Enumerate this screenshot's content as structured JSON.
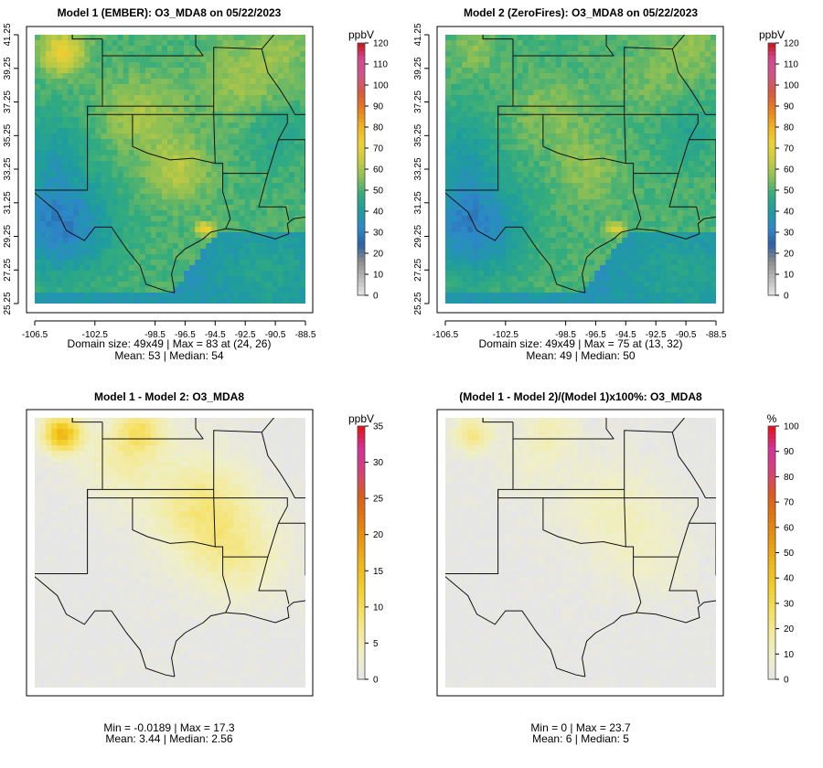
{
  "palette_main": [
    "#e6e6e6",
    "#b9b9b9",
    "#8d8d8d",
    "#2a60a6",
    "#2d88c8",
    "#1e9c9f",
    "#33ac7d",
    "#8cbf55",
    "#c7cc3f",
    "#eed334",
    "#f0b31e",
    "#e8801b",
    "#d85a3b",
    "#cf5582",
    "#d24a94",
    "#c81414"
  ],
  "palette_diff": [
    "#e6e6e6",
    "#efefc8",
    "#f4ea9a",
    "#f5df5e",
    "#f3ce28",
    "#efb716",
    "#e9980f",
    "#e27a0e",
    "#d95c1c",
    "#d3427a",
    "#d43298",
    "#e81010"
  ],
  "panels": [
    {
      "id": "p1",
      "title": "Model 1 (EMBER): O3_MDA8 on 05/22/2023",
      "x_ticks": [
        "-106.5",
        "-102.5",
        "-98.5",
        "-96.5",
        "-94.5",
        "-92.5",
        "-90.5",
        "-88.5"
      ],
      "y_ticks": [
        "25.25",
        "27.25",
        "29.25",
        "31.25",
        "33.25",
        "35.25",
        "37.25",
        "39.25",
        "41.25"
      ],
      "legend_unit": "ppbV",
      "legend_ticks": [
        "0",
        "10",
        "20",
        "30",
        "40",
        "50",
        "60",
        "70",
        "80",
        "90",
        "100",
        "110",
        "120"
      ],
      "stats_line1": "Domain size: 49x49 | Max = 83 at (24, 26)",
      "stats_line2": "Mean: 53 |  Median: 54"
    },
    {
      "id": "p2",
      "title": "Model 2 (ZeroFires): O3_MDA8 on 05/22/2023",
      "x_ticks": [
        "-106.5",
        "-102.5",
        "-98.5",
        "-96.5",
        "-94.5",
        "-92.5",
        "-90.5",
        "-88.5"
      ],
      "y_ticks": [
        "25.25",
        "27.25",
        "29.25",
        "31.25",
        "33.25",
        "35.25",
        "37.25",
        "39.25",
        "41.25"
      ],
      "legend_unit": "ppbV",
      "legend_ticks": [
        "0",
        "10",
        "20",
        "30",
        "40",
        "50",
        "60",
        "70",
        "80",
        "90",
        "100",
        "110",
        "120"
      ],
      "stats_line1": "Domain size: 49x49 | Max = 75 at (13, 32)",
      "stats_line2": "Mean: 49 |  Median: 50"
    },
    {
      "id": "p3",
      "title": "Model 1 - Model 2: O3_MDA8",
      "legend_unit": "ppbV",
      "legend_ticks": [
        "0",
        "5",
        "10",
        "15",
        "20",
        "25",
        "30",
        "35"
      ],
      "stats_line1": "Min = -0.0189 | Max = 17.3",
      "stats_line2": "Mean: 3.44 |  Median: 2.56"
    },
    {
      "id": "p4",
      "title": "(Model 1 - Model 2)/(Model 1)x100%: O3_MDA8",
      "legend_unit": "%",
      "legend_ticks": [
        "0",
        "10",
        "20",
        "30",
        "40",
        "50",
        "60",
        "70",
        "80",
        "90",
        "100"
      ],
      "stats_line1": "Min = 0 | Max = 23.7",
      "stats_line2": "Mean: 6 |  Median: 5"
    }
  ],
  "chart_data": [
    {
      "type": "heatmap",
      "title": "Model 1 (EMBER): O3_MDA8 on 05/22/2023",
      "grid": "49x49",
      "x_range": [
        -106.5,
        -88.5
      ],
      "y_range": [
        25.25,
        41.25
      ],
      "color_scale": {
        "unit": "ppbV",
        "range": [
          0,
          120
        ],
        "step": 10
      },
      "stats": {
        "max": 83,
        "max_at": [
          24,
          26
        ],
        "mean": 53,
        "median": 54
      },
      "samples": [
        [
          25.25,
          -106.5,
          30
        ],
        [
          27.25,
          -104,
          32
        ],
        [
          29.25,
          -104,
          31
        ],
        [
          31.25,
          -104,
          34
        ],
        [
          33.25,
          -104,
          38
        ],
        [
          35.25,
          -104,
          50
        ],
        [
          37.25,
          -104,
          48
        ],
        [
          39.25,
          -104,
          62
        ],
        [
          41.25,
          -104.5,
          68
        ],
        [
          39.5,
          -105.5,
          78
        ],
        [
          35.25,
          -99,
          58
        ],
        [
          33.25,
          -97,
          68
        ],
        [
          31.25,
          -95.5,
          62
        ],
        [
          29.7,
          -95.2,
          80
        ],
        [
          37.25,
          -94,
          60
        ],
        [
          39.25,
          -92,
          62
        ],
        [
          33.25,
          -92,
          58
        ],
        [
          35.25,
          -91,
          50
        ],
        [
          29.25,
          -90.5,
          52
        ],
        [
          27.25,
          -92,
          45
        ],
        [
          27.25,
          -96,
          36
        ],
        [
          25.25,
          -98,
          44
        ]
      ]
    },
    {
      "type": "heatmap",
      "title": "Model 2 (ZeroFires): O3_MDA8 on 05/22/2023",
      "grid": "49x49",
      "x_range": [
        -106.5,
        -88.5
      ],
      "y_range": [
        25.25,
        41.25
      ],
      "color_scale": {
        "unit": "ppbV",
        "range": [
          0,
          120
        ],
        "step": 10
      },
      "stats": {
        "max": 75,
        "max_at": [
          13,
          32
        ],
        "mean": 49,
        "median": 50
      },
      "samples": [
        [
          25.25,
          -106.5,
          30
        ],
        [
          27.25,
          -104,
          31
        ],
        [
          29.25,
          -104,
          30
        ],
        [
          31.25,
          -104,
          34
        ],
        [
          33.25,
          -104,
          38
        ],
        [
          35.25,
          -104,
          46
        ],
        [
          37.25,
          -104,
          44
        ],
        [
          39.25,
          -104,
          52
        ],
        [
          41.25,
          -104.5,
          54
        ],
        [
          39.5,
          -105.5,
          56
        ],
        [
          35.25,
          -99,
          52
        ],
        [
          33.25,
          -97,
          58
        ],
        [
          31.25,
          -95.5,
          54
        ],
        [
          29.7,
          -95.2,
          75
        ],
        [
          37.25,
          -94,
          52
        ],
        [
          39.25,
          -92,
          58
        ],
        [
          33.25,
          -92,
          50
        ],
        [
          35.25,
          -91,
          45
        ],
        [
          29.25,
          -90.5,
          48
        ],
        [
          27.25,
          -92,
          45
        ],
        [
          27.25,
          -96,
          36
        ],
        [
          25.25,
          -98,
          44
        ]
      ]
    },
    {
      "type": "heatmap",
      "title": "Model 1 - Model 2: O3_MDA8",
      "color_scale": {
        "unit": "ppbV",
        "range": [
          0,
          35
        ],
        "step": 5
      },
      "stats": {
        "min": -0.0189,
        "max": 17.3,
        "mean": 3.44,
        "median": 2.56
      }
    },
    {
      "type": "heatmap",
      "title": "(Model 1 - Model 2)/(Model 1)x100%: O3_MDA8",
      "color_scale": {
        "unit": "%",
        "range": [
          0,
          100
        ],
        "step": 10
      },
      "stats": {
        "min": 0,
        "max": 23.7,
        "mean": 6,
        "median": 5
      }
    }
  ]
}
